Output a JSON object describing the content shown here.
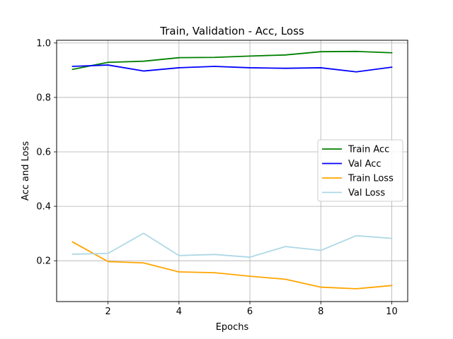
{
  "chart_data": {
    "type": "line",
    "title": "Train, Validation - Acc, Loss",
    "xlabel": "Epochs",
    "ylabel": "Acc and Loss",
    "x": [
      1,
      2,
      3,
      4,
      5,
      6,
      7,
      8,
      9,
      10
    ],
    "xlim": [
      0.55,
      10.45
    ],
    "ylim": [
      0.05,
      1.01
    ],
    "xticks": [
      2,
      4,
      6,
      8,
      10
    ],
    "xtick_labels": [
      "2",
      "4",
      "6",
      "8",
      "10"
    ],
    "yticks": [
      0.2,
      0.4,
      0.6,
      0.8,
      1.0
    ],
    "ytick_labels": [
      "0.2",
      "0.4",
      "0.6",
      "0.8",
      "1.0"
    ],
    "grid": true,
    "legend_position": "center-right",
    "series": [
      {
        "name": "Train Acc",
        "color": "#008000",
        "values": [
          0.903,
          0.929,
          0.933,
          0.946,
          0.947,
          0.952,
          0.956,
          0.968,
          0.969,
          0.964
        ]
      },
      {
        "name": "Val Acc",
        "color": "#0000ff",
        "values": [
          0.914,
          0.919,
          0.897,
          0.909,
          0.914,
          0.909,
          0.907,
          0.909,
          0.894,
          0.911
        ]
      },
      {
        "name": "Train Loss",
        "color": "#ffa500",
        "values": [
          0.269,
          0.197,
          0.192,
          0.159,
          0.156,
          0.143,
          0.132,
          0.103,
          0.097,
          0.109
        ]
      },
      {
        "name": "Val Loss",
        "color": "#add8e6",
        "values": [
          0.224,
          0.227,
          0.301,
          0.219,
          0.223,
          0.213,
          0.252,
          0.238,
          0.292,
          0.282
        ]
      }
    ]
  }
}
